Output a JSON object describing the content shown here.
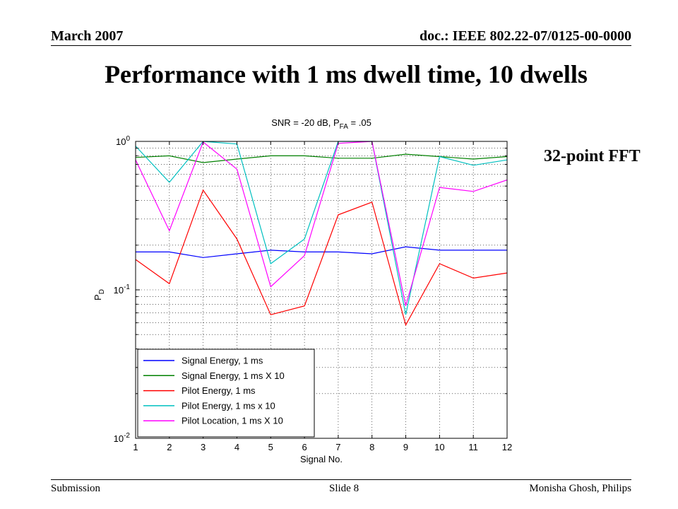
{
  "header": {
    "date": "March 2007",
    "doc": "doc.: IEEE 802.22-07/0125-00-0000"
  },
  "slide_title": "Performance with 1 ms dwell time, 10 dwells",
  "annotation": "32-point FFT",
  "footer": {
    "left": "Submission",
    "center": "Slide 8",
    "right": "Monisha Ghosh, Philips"
  },
  "chart_data": {
    "type": "line",
    "title": "SNR = -20 dB, P_FA = .05",
    "title_main": "SNR = -20 dB, P",
    "title_sub": "FA",
    "title_tail": " = .05",
    "xlabel": "Signal No.",
    "ylabel_main": "P",
    "ylabel_sub": "D",
    "y_scale": "log",
    "xlim": [
      1,
      12
    ],
    "ylim": [
      0.01,
      1
    ],
    "grid": true,
    "legend_position": "bottom-left",
    "x": [
      1,
      2,
      3,
      4,
      5,
      6,
      7,
      8,
      9,
      10,
      11,
      12
    ],
    "x_tick_labels": [
      "1",
      "2",
      "3",
      "4",
      "5",
      "6",
      "7",
      "8",
      "9",
      "10",
      "11",
      "12"
    ],
    "y_ticks": [
      {
        "value": 1,
        "base": "10",
        "exp": "0"
      },
      {
        "value": 0.1,
        "base": "10",
        "exp": "-1"
      },
      {
        "value": 0.01,
        "base": "10",
        "exp": "-2"
      }
    ],
    "series": [
      {
        "name": "Signal Energy, 1 ms",
        "color": "#0000ff",
        "values": [
          0.18,
          0.18,
          0.165,
          0.175,
          0.185,
          0.18,
          0.18,
          0.175,
          0.195,
          0.185,
          0.185,
          0.185
        ]
      },
      {
        "name": "Signal Energy, 1 ms X 10",
        "color": "#008000",
        "values": [
          0.78,
          0.8,
          0.72,
          0.76,
          0.8,
          0.8,
          0.77,
          0.77,
          0.82,
          0.79,
          0.76,
          0.79
        ]
      },
      {
        "name": "Pilot Energy, 1 ms",
        "color": "#ff0000",
        "values": [
          0.16,
          0.11,
          0.47,
          0.22,
          0.068,
          0.078,
          0.32,
          0.39,
          0.058,
          0.15,
          0.12,
          0.13
        ]
      },
      {
        "name": "Pilot Energy, 1 ms x 10",
        "color": "#00c0c0",
        "values": [
          0.93,
          0.53,
          1.0,
          0.96,
          0.15,
          0.22,
          1.0,
          1.0,
          0.068,
          0.79,
          0.69,
          0.75
        ]
      },
      {
        "name": "Pilot Location, 1 ms X 10",
        "color": "#ff00ff",
        "values": [
          0.75,
          0.25,
          0.99,
          0.65,
          0.105,
          0.17,
          0.97,
          1.0,
          0.078,
          0.49,
          0.46,
          0.55
        ]
      }
    ]
  }
}
